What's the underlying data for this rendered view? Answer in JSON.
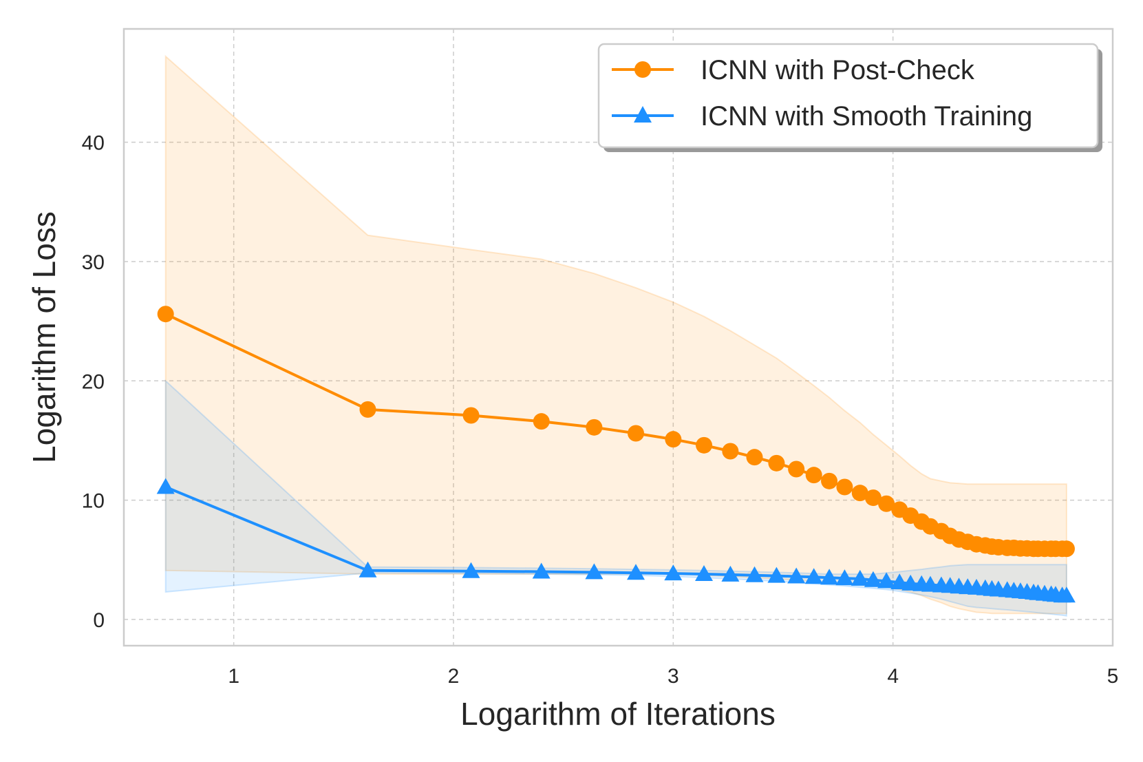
{
  "chart_data": {
    "type": "line",
    "xlabel": "Logarithm of Iterations",
    "ylabel": "Logarithm of Loss",
    "xlim": [
      0.5,
      5.0
    ],
    "ylim": [
      -2.2,
      49.5
    ],
    "xticks": [
      1,
      2,
      3,
      4,
      5
    ],
    "yticks": [
      0,
      10,
      20,
      30,
      40
    ],
    "grid": true,
    "legend_position": "top-right",
    "x": [
      0.69,
      1.61,
      2.08,
      2.4,
      2.64,
      2.83,
      3.0,
      3.14,
      3.26,
      3.37,
      3.47,
      3.56,
      3.64,
      3.71,
      3.78,
      3.85,
      3.91,
      3.97,
      4.03,
      4.08,
      4.13,
      4.17,
      4.22,
      4.26,
      4.3,
      4.34,
      4.38,
      4.42,
      4.45,
      4.48,
      4.52,
      4.55,
      4.58,
      4.61,
      4.64,
      4.66,
      4.69,
      4.72,
      4.74,
      4.77,
      4.79
    ],
    "series": [
      {
        "name": "ICNN with Post-Check",
        "color": "#ff8c00",
        "marker": "circle",
        "values": [
          25.6,
          17.6,
          17.1,
          16.6,
          16.1,
          15.6,
          15.1,
          14.6,
          14.1,
          13.6,
          13.1,
          12.6,
          12.1,
          11.6,
          11.1,
          10.6,
          10.2,
          9.7,
          9.2,
          8.7,
          8.2,
          7.8,
          7.4,
          7.0,
          6.7,
          6.5,
          6.3,
          6.2,
          6.1,
          6.05,
          6.0,
          6.0,
          5.95,
          5.95,
          5.92,
          5.92,
          5.92,
          5.92,
          5.92,
          5.92,
          5.92
        ],
        "band_upper": [
          47.2,
          32.2,
          31.0,
          30.2,
          29.0,
          27.8,
          26.6,
          25.4,
          24.2,
          23.0,
          21.9,
          20.7,
          19.6,
          18.6,
          17.5,
          16.5,
          15.5,
          14.6,
          13.7,
          12.9,
          12.2,
          11.8,
          11.6,
          11.45,
          11.4,
          11.35,
          11.35,
          11.35,
          11.35,
          11.35,
          11.35,
          11.35,
          11.35,
          11.35,
          11.35,
          11.35,
          11.35,
          11.35,
          11.35,
          11.35,
          11.35
        ],
        "band_lower": [
          4.1,
          3.8,
          3.8,
          3.8,
          3.8,
          3.8,
          3.8,
          3.7,
          3.6,
          3.5,
          3.4,
          3.3,
          3.2,
          3.1,
          3.0,
          2.9,
          2.8,
          2.7,
          2.5,
          2.3,
          2.0,
          1.7,
          1.4,
          1.1,
          0.9,
          0.75,
          0.6,
          0.55,
          0.5,
          0.5,
          0.5,
          0.5,
          0.5,
          0.5,
          0.5,
          0.5,
          0.5,
          0.5,
          0.5,
          0.5,
          0.5
        ]
      },
      {
        "name": "ICNN with Smooth Training",
        "color": "#1e90ff",
        "marker": "triangle",
        "values": [
          11.1,
          4.1,
          4.05,
          4.0,
          3.95,
          3.9,
          3.85,
          3.8,
          3.75,
          3.7,
          3.65,
          3.6,
          3.55,
          3.5,
          3.45,
          3.4,
          3.3,
          3.2,
          3.1,
          3.0,
          2.95,
          2.9,
          2.85,
          2.8,
          2.75,
          2.7,
          2.65,
          2.6,
          2.55,
          2.5,
          2.45,
          2.4,
          2.35,
          2.3,
          2.25,
          2.2,
          2.15,
          2.1,
          2.05,
          2.0,
          2.0
        ],
        "band_upper": [
          20.0,
          4.4,
          4.35,
          4.3,
          4.25,
          4.2,
          4.15,
          4.1,
          4.05,
          4.0,
          3.95,
          3.9,
          3.85,
          3.8,
          3.8,
          3.8,
          3.8,
          3.9,
          4.0,
          4.1,
          4.2,
          4.3,
          4.4,
          4.5,
          4.55,
          4.6,
          4.6,
          4.6,
          4.6,
          4.6,
          4.6,
          4.6,
          4.6,
          4.6,
          4.6,
          4.6,
          4.6,
          4.6,
          4.6,
          4.6,
          4.6
        ],
        "band_lower": [
          2.3,
          3.9,
          3.85,
          3.8,
          3.75,
          3.7,
          3.6,
          3.5,
          3.4,
          3.3,
          3.2,
          3.1,
          3.0,
          2.9,
          2.8,
          2.7,
          2.6,
          2.5,
          2.35,
          2.2,
          2.05,
          1.9,
          1.7,
          1.5,
          1.3,
          1.1,
          1.0,
          0.95,
          0.9,
          0.85,
          0.8,
          0.75,
          0.7,
          0.65,
          0.6,
          0.55,
          0.5,
          0.45,
          0.4,
          0.35,
          0.3
        ]
      }
    ]
  }
}
